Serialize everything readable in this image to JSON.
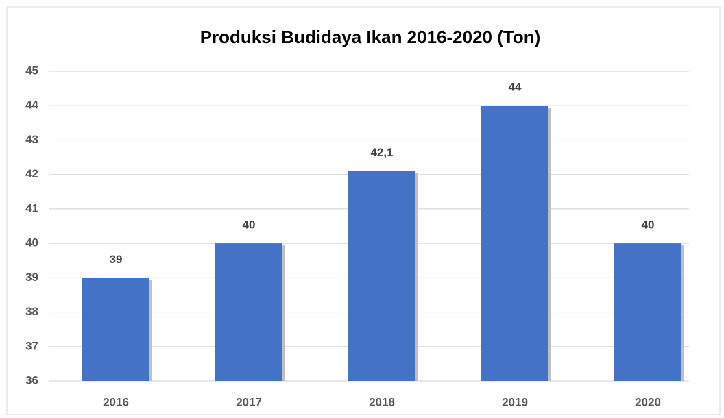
{
  "chart_data": {
    "type": "bar",
    "title": "Produksi Budidaya Ikan 2016-2020 (Ton)",
    "categories": [
      "2016",
      "2017",
      "2018",
      "2019",
      "2020"
    ],
    "values": [
      39,
      40,
      42.1,
      44,
      40
    ],
    "value_labels": [
      "39",
      "40",
      "42,1",
      "44",
      "40"
    ],
    "color": "#4472c4",
    "ylim": [
      36,
      45
    ],
    "yticks": [
      36,
      37,
      38,
      39,
      40,
      41,
      42,
      43,
      44,
      45
    ],
    "grid": true
  }
}
